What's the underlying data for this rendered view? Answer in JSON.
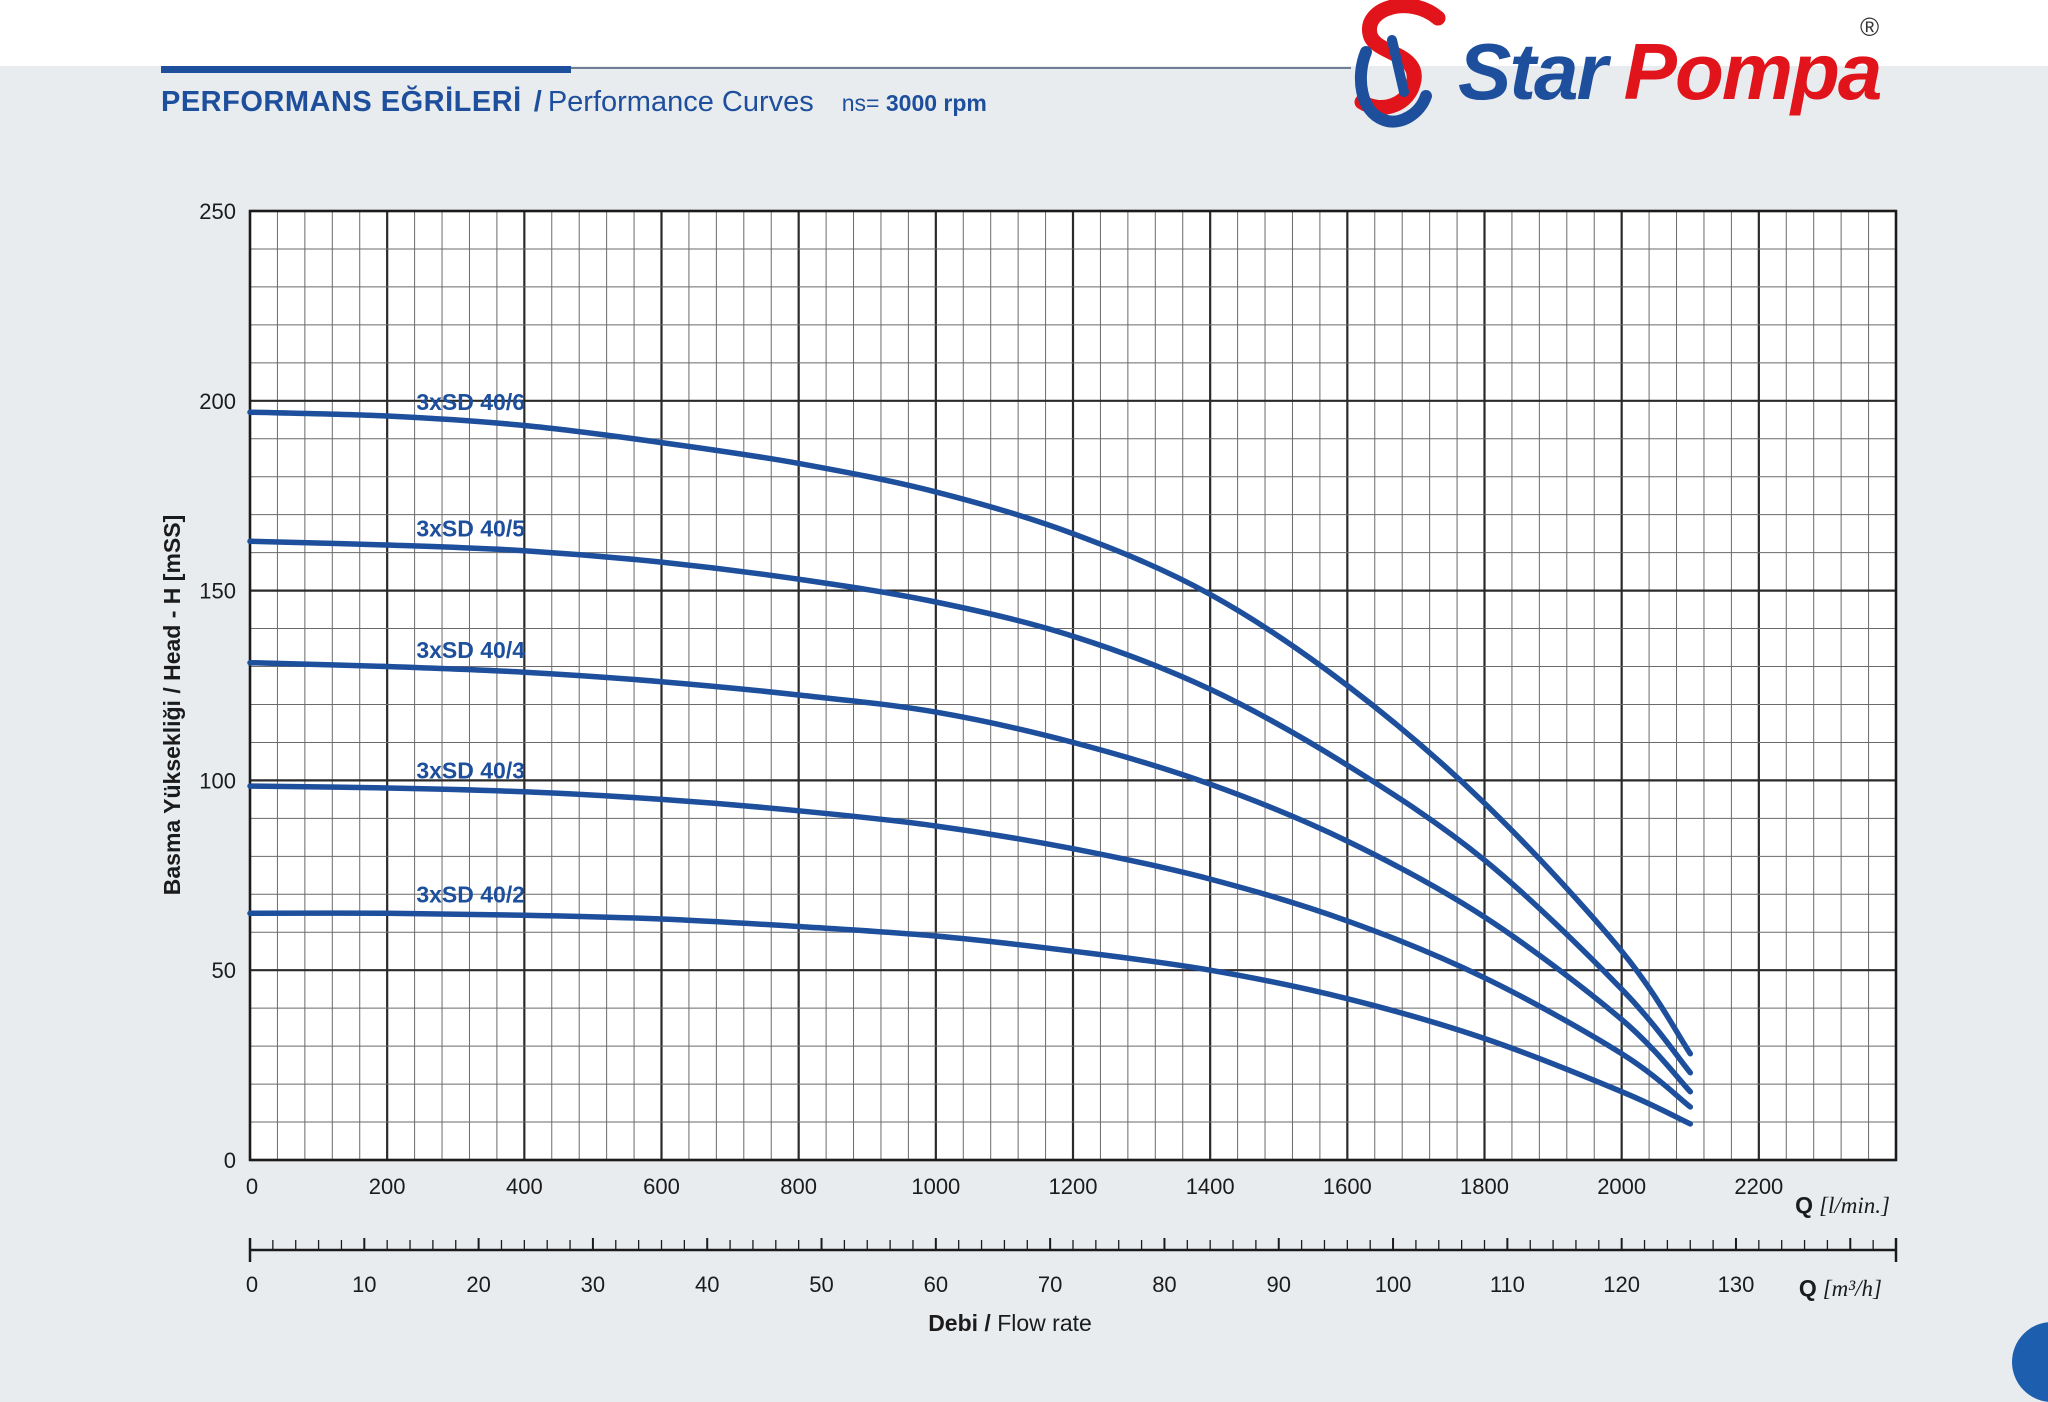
{
  "header": {
    "title_tr": "PERFORMANS EĞRİLERİ",
    "separator": "/",
    "title_en": "Performance Curves",
    "speed_prefix": "ns=",
    "speed_value": "3000 rpm"
  },
  "brand": {
    "word1": "Star",
    "word2": "Pompa",
    "registered": "®",
    "color_blue": "#1d4f9c",
    "color_red": "#e2141b"
  },
  "chart_data": {
    "type": "line",
    "title": "",
    "ylabel": "Basma Yüksekliği / Head - H [mSS]",
    "xlabel_bold": "Debi /",
    "xlabel_rest": " Flow rate",
    "x_unit_top_q": "Q",
    "x_unit_top": "[l/min.]",
    "x_unit_bottom_q": "Q",
    "x_unit_bottom": "[m³/h]",
    "xlim": [
      0,
      2400
    ],
    "ylim": [
      0,
      250
    ],
    "grid": true,
    "x_ticks": [
      0,
      200,
      400,
      600,
      800,
      1000,
      1200,
      1400,
      1600,
      1800,
      2000,
      2200
    ],
    "y_ticks": [
      0,
      50,
      100,
      150,
      200,
      250
    ],
    "secondary_x_ticks": [
      0,
      10,
      20,
      30,
      40,
      50,
      60,
      70,
      80,
      90,
      100,
      110,
      120,
      130
    ],
    "secondary_x_max": 144,
    "line_color": "#1d4f9c",
    "series": [
      {
        "name": "3xSD 40/6",
        "x": [
          0,
          200,
          400,
          600,
          800,
          1000,
          1200,
          1400,
          1600,
          1800,
          2000,
          2100
        ],
        "y": [
          197,
          196,
          193.5,
          189,
          183.5,
          176,
          165,
          149,
          125,
          94,
          55,
          28
        ]
      },
      {
        "name": "3xSD 40/5",
        "x": [
          0,
          200,
          400,
          600,
          800,
          1000,
          1200,
          1400,
          1600,
          1800,
          2000,
          2100
        ],
        "y": [
          163,
          162,
          160.5,
          157.5,
          153,
          147,
          138,
          124,
          104,
          79,
          45,
          23
        ]
      },
      {
        "name": "3xSD 40/4",
        "x": [
          0,
          200,
          400,
          600,
          800,
          1000,
          1200,
          1400,
          1600,
          1800,
          2000,
          2100
        ],
        "y": [
          131,
          130,
          128.5,
          126,
          122.5,
          118,
          110,
          99,
          84,
          64,
          37,
          18
        ]
      },
      {
        "name": "3xSD 40/3",
        "x": [
          0,
          200,
          400,
          600,
          800,
          1000,
          1200,
          1400,
          1600,
          1800,
          2000,
          2100
        ],
        "y": [
          98.5,
          98,
          97,
          95,
          92,
          88,
          82,
          74,
          63,
          48,
          28,
          14
        ]
      },
      {
        "name": "3xSD 40/2",
        "x": [
          0,
          200,
          400,
          600,
          800,
          1000,
          1200,
          1400,
          1600,
          1800,
          2000,
          2100
        ],
        "y": [
          65,
          65,
          64.5,
          63.5,
          61.5,
          59,
          55,
          50,
          42.5,
          32,
          18,
          9.5
        ]
      }
    ]
  }
}
